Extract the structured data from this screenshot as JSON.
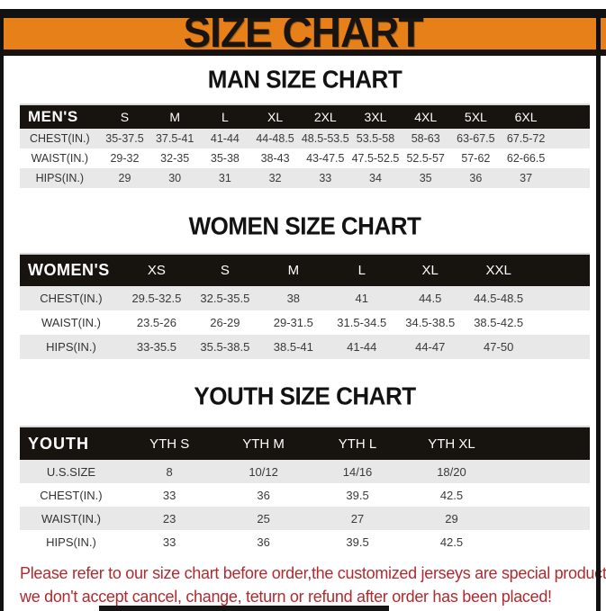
{
  "page": {
    "title": "SIZE CHART"
  },
  "colors": {
    "banner_orange": "#E8801A",
    "table_header_black": "#17130F",
    "row_stripe_gray": "#E8E8E8",
    "footer_red": "#B02B30"
  },
  "sections": {
    "men_title": "MAN SIZE CHART",
    "women_title": "WOMEN SIZE CHART",
    "youth_title": "YOUTH SIZE CHART"
  },
  "tables": [
    {
      "name": "men",
      "header": [
        "MEN'S",
        "S",
        "M",
        "L",
        "XL",
        "2XL",
        "3XL",
        "4XL",
        "5XL",
        "6XL"
      ],
      "rows": [
        [
          "CHEST(IN.)",
          "35-37.5",
          "37.5-41",
          "41-44",
          "44-48.5",
          "48.5-53.5",
          "53.5-58",
          "58-63",
          "63-67.5",
          "67.5-72"
        ],
        [
          "WAIST(IN.)",
          "29-32",
          "32-35",
          "35-38",
          "38-43",
          "43-47.5",
          "47.5-52.5",
          "52.5-57",
          "57-62",
          "62-66.5"
        ],
        [
          "HIPS(IN.)",
          "29",
          "30",
          "31",
          "32",
          "33",
          "34",
          "35",
          "36",
          "37"
        ]
      ]
    },
    {
      "name": "women",
      "header": [
        "WOMEN'S",
        "XS",
        "S",
        "M",
        "L",
        "XL",
        "XXL"
      ],
      "rows": [
        [
          "CHEST(IN.)",
          "29.5-32.5",
          "32.5-35.5",
          "38",
          "41",
          "44.5",
          "44.5-48.5"
        ],
        [
          "WAIST(IN.)",
          "23.5-26",
          "26-29",
          "29-31.5",
          "31.5-34.5",
          "34.5-38.5",
          "38.5-42.5"
        ],
        [
          "HIPS(IN.)",
          "33-35.5",
          "35.5-38.5",
          "38.5-41",
          "41-44",
          "44-47",
          "47-50"
        ]
      ]
    },
    {
      "name": "youth",
      "header": [
        "YOUTH",
        "YTH S",
        "YTH M",
        "YTH L",
        "YTH XL"
      ],
      "rows": [
        [
          "U.S.SIZE",
          "8",
          "10/12",
          "14/16",
          "18/20"
        ],
        [
          "CHEST(IN.)",
          "33",
          "36",
          "39.5",
          "42.5"
        ],
        [
          "WAIST(IN.)",
          "23",
          "25",
          "27",
          "29"
        ],
        [
          "HIPS(IN.)",
          "33",
          "36",
          "39.5",
          "42.5"
        ]
      ]
    }
  ],
  "footer": {
    "line1": "Please refer to our size chart before order,the customized jerseys are special products,",
    "line2": "we don't accept cancel, change, teturn or refund after order has been placed!"
  }
}
